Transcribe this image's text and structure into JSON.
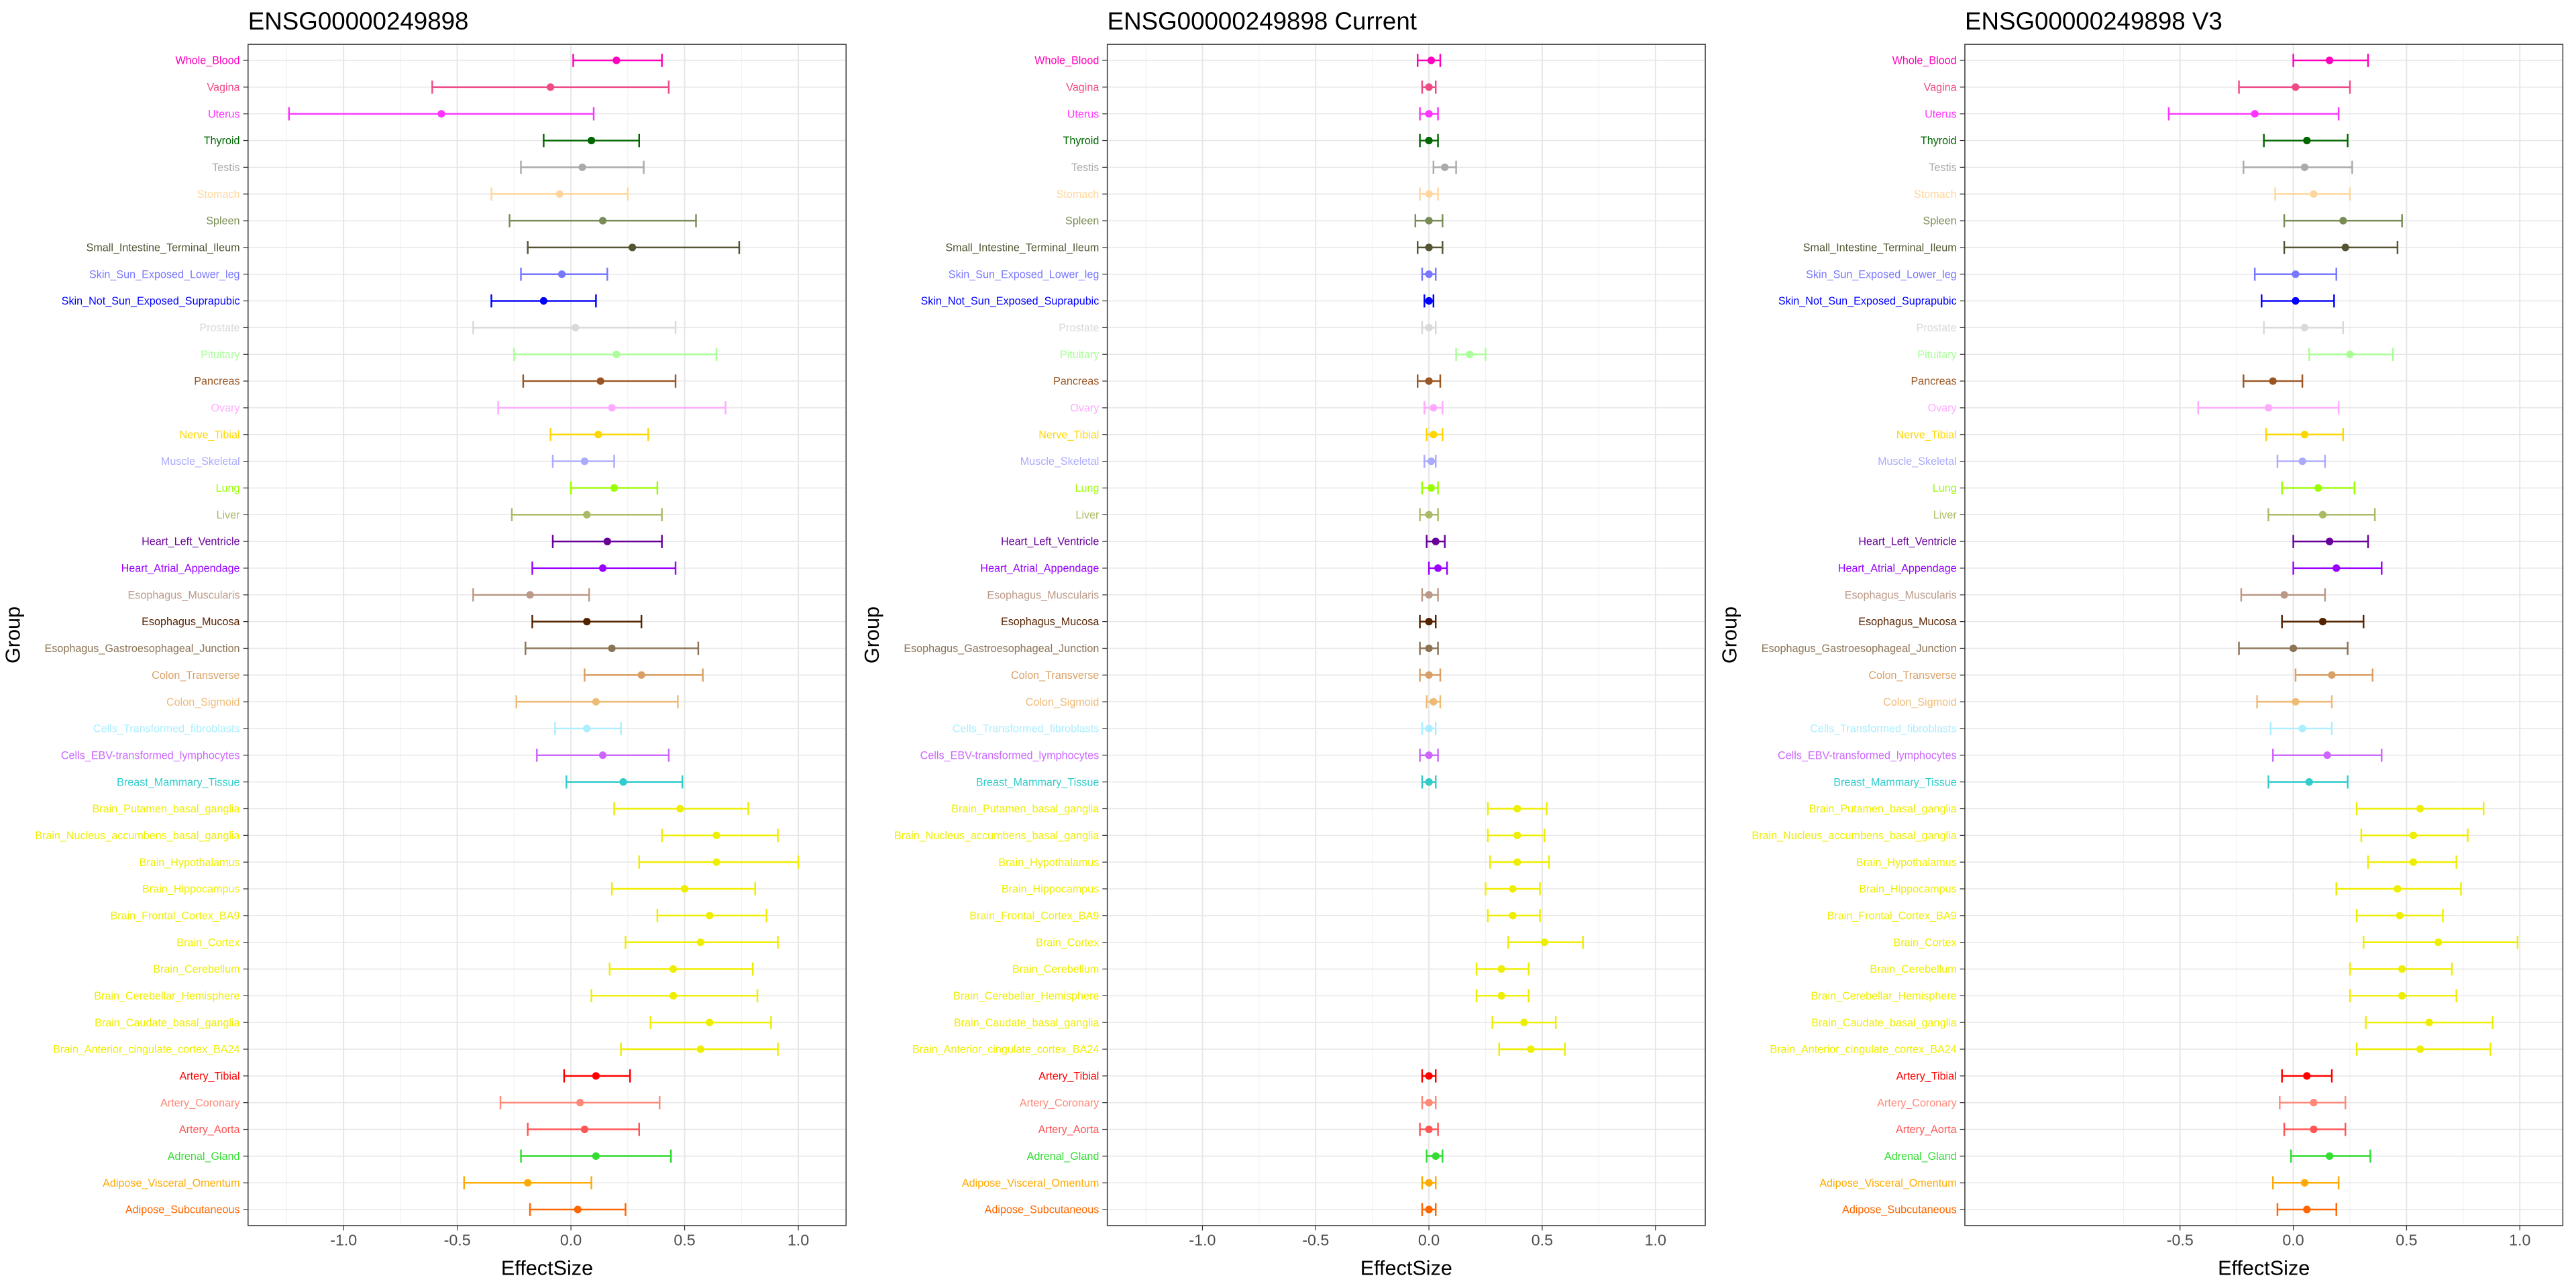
{
  "chart_data": [
    {
      "type": "forest",
      "title": "ENSG00000249898",
      "x_label": "EffectSize",
      "y_label": "Group",
      "categories": [
        "Whole_Blood",
        "Vagina",
        "Uterus",
        "Thyroid",
        "Testis",
        "Stomach",
        "Spleen",
        "Small_Intestine_Terminal_Ileum",
        "Skin_Sun_Exposed_Lower_leg",
        "Skin_Not_Sun_Exposed_Suprapubic",
        "Prostate",
        "Pituitary",
        "Pancreas",
        "Ovary",
        "Nerve_Tibial",
        "Muscle_Skeletal",
        "Lung",
        "Liver",
        "Heart_Left_Ventricle",
        "Heart_Atrial_Appendage",
        "Esophagus_Muscularis",
        "Esophagus_Mucosa",
        "Esophagus_Gastroesophageal_Junction",
        "Colon_Transverse",
        "Colon_Sigmoid",
        "Cells_Transformed_fibroblasts",
        "Cells_EBV-transformed_lymphocytes",
        "Breast_Mammary_Tissue",
        "Brain_Putamen_basal_ganglia",
        "Brain_Nucleus_accumbens_basal_ganglia",
        "Brain_Hypothalamus",
        "Brain_Hippocampus",
        "Brain_Frontal_Cortex_BA9",
        "Brain_Cortex",
        "Brain_Cerebellum",
        "Brain_Cerebellar_Hemisphere",
        "Brain_Caudate_basal_ganglia",
        "Brain_Anterior_cingulate_cortex_BA24",
        "Artery_Tibial",
        "Artery_Coronary",
        "Artery_Aorta",
        "Adrenal_Gland",
        "Adipose_Visceral_Omentum",
        "Adipose_Subcutaneous"
      ],
      "colors": [
        "#FF00BB",
        "#EE4C88",
        "#FF33FF",
        "#006600",
        "#AAAAAA",
        "#FFD79E",
        "#7A8B55",
        "#555533",
        "#7777FF",
        "#0000FF",
        "#D9D9D9",
        "#AAFF99",
        "#995522",
        "#FFAAFF",
        "#FFD700",
        "#AAAAFF",
        "#99FF00",
        "#AABB66",
        "#660099",
        "#9900FF",
        "#BB9988",
        "#552200",
        "#8B7355",
        "#D9A066",
        "#EEBB77",
        "#AAEEFF",
        "#CC66FF",
        "#33CCCC",
        "#EEEE00",
        "#EEEE00",
        "#EEEE00",
        "#EEEE00",
        "#EEEE00",
        "#EEEE00",
        "#EEEE00",
        "#EEEE00",
        "#EEEE00",
        "#EEEE00",
        "#FF0000",
        "#FF8877",
        "#FF5555",
        "#33DD33",
        "#FFAA00",
        "#FF6600"
      ],
      "values": [
        0.2,
        -0.09,
        -0.57,
        0.09,
        0.05,
        -0.05,
        0.14,
        0.27,
        -0.04,
        -0.12,
        0.02,
        0.2,
        0.13,
        0.18,
        0.12,
        0.06,
        0.19,
        0.07,
        0.16,
        0.14,
        -0.18,
        0.07,
        0.18,
        0.31,
        0.11,
        0.07,
        0.14,
        0.23,
        0.48,
        0.64,
        0.64,
        0.5,
        0.61,
        0.57,
        0.45,
        0.45,
        0.61,
        0.57,
        0.11,
        0.04,
        0.06,
        0.11,
        -0.19,
        0.03
      ],
      "lower": [
        0.01,
        -0.61,
        -1.24,
        -0.12,
        -0.22,
        -0.35,
        -0.27,
        -0.19,
        -0.22,
        -0.35,
        -0.43,
        -0.25,
        -0.21,
        -0.32,
        -0.09,
        -0.08,
        0.0,
        -0.26,
        -0.08,
        -0.17,
        -0.43,
        -0.17,
        -0.2,
        0.06,
        -0.24,
        -0.07,
        -0.15,
        -0.02,
        0.19,
        0.4,
        0.3,
        0.18,
        0.38,
        0.24,
        0.17,
        0.09,
        0.35,
        0.22,
        -0.03,
        -0.31,
        -0.19,
        -0.22,
        -0.47,
        -0.18
      ],
      "upper": [
        0.4,
        0.43,
        0.1,
        0.3,
        0.32,
        0.25,
        0.55,
        0.74,
        0.16,
        0.11,
        0.46,
        0.64,
        0.46,
        0.68,
        0.34,
        0.19,
        0.38,
        0.4,
        0.4,
        0.46,
        0.08,
        0.31,
        0.56,
        0.58,
        0.47,
        0.22,
        0.43,
        0.49,
        0.78,
        0.91,
        1.0,
        0.81,
        0.86,
        0.91,
        0.8,
        0.82,
        0.88,
        0.91,
        0.26,
        0.39,
        0.3,
        0.44,
        0.09,
        0.24
      ],
      "xlim": [
        -1.42,
        1.21
      ],
      "xticks": [
        {
          "value": -1,
          "label": "-1.0"
        },
        -0.5,
        {
          "value": 0,
          "label": "0.0"
        },
        0.5,
        {
          "value": 1,
          "label": "1.0"
        }
      ],
      "grid": true
    },
    {
      "type": "forest",
      "title": "ENSG00000249898 Current",
      "x_label": "EffectSize",
      "y_label": "Group",
      "categories": [
        "Whole_Blood",
        "Vagina",
        "Uterus",
        "Thyroid",
        "Testis",
        "Stomach",
        "Spleen",
        "Small_Intestine_Terminal_Ileum",
        "Skin_Sun_Exposed_Lower_leg",
        "Skin_Not_Sun_Exposed_Suprapubic",
        "Prostate",
        "Pituitary",
        "Pancreas",
        "Ovary",
        "Nerve_Tibial",
        "Muscle_Skeletal",
        "Lung",
        "Liver",
        "Heart_Left_Ventricle",
        "Heart_Atrial_Appendage",
        "Esophagus_Muscularis",
        "Esophagus_Mucosa",
        "Esophagus_Gastroesophageal_Junction",
        "Colon_Transverse",
        "Colon_Sigmoid",
        "Cells_Transformed_fibroblasts",
        "Cells_EBV-transformed_lymphocytes",
        "Breast_Mammary_Tissue",
        "Brain_Putamen_basal_ganglia",
        "Brain_Nucleus_accumbens_basal_ganglia",
        "Brain_Hypothalamus",
        "Brain_Hippocampus",
        "Brain_Frontal_Cortex_BA9",
        "Brain_Cortex",
        "Brain_Cerebellum",
        "Brain_Cerebellar_Hemisphere",
        "Brain_Caudate_basal_ganglia",
        "Brain_Anterior_cingulate_cortex_BA24",
        "Artery_Tibial",
        "Artery_Coronary",
        "Artery_Aorta",
        "Adrenal_Gland",
        "Adipose_Visceral_Omentum",
        "Adipose_Subcutaneous"
      ],
      "colors": [
        "#FF00BB",
        "#EE4C88",
        "#FF33FF",
        "#006600",
        "#AAAAAA",
        "#FFD79E",
        "#7A8B55",
        "#555533",
        "#7777FF",
        "#0000FF",
        "#D9D9D9",
        "#AAFF99",
        "#995522",
        "#FFAAFF",
        "#FFD700",
        "#AAAAFF",
        "#99FF00",
        "#AABB66",
        "#660099",
        "#9900FF",
        "#BB9988",
        "#552200",
        "#8B7355",
        "#D9A066",
        "#EEBB77",
        "#AAEEFF",
        "#CC66FF",
        "#33CCCC",
        "#EEEE00",
        "#EEEE00",
        "#EEEE00",
        "#EEEE00",
        "#EEEE00",
        "#EEEE00",
        "#EEEE00",
        "#EEEE00",
        "#EEEE00",
        "#EEEE00",
        "#FF0000",
        "#FF8877",
        "#FF5555",
        "#33DD33",
        "#FFAA00",
        "#FF6600"
      ],
      "values": [
        0.01,
        0.0,
        0.0,
        0.0,
        0.07,
        0.0,
        0.0,
        0.0,
        0.0,
        0.0,
        0.0,
        0.18,
        0.0,
        0.02,
        0.02,
        0.01,
        0.01,
        0.0,
        0.03,
        0.04,
        0.0,
        0.0,
        0.0,
        0.0,
        0.02,
        0.0,
        0.0,
        0.0,
        0.39,
        0.39,
        0.39,
        0.37,
        0.37,
        0.51,
        0.32,
        0.32,
        0.42,
        0.45,
        0.0,
        0.0,
        0.0,
        0.03,
        0.0,
        0.0
      ],
      "lower": [
        -0.05,
        -0.03,
        -0.04,
        -0.04,
        0.02,
        -0.04,
        -0.06,
        -0.05,
        -0.03,
        -0.02,
        -0.03,
        0.12,
        -0.05,
        -0.02,
        -0.01,
        -0.02,
        -0.03,
        -0.04,
        -0.01,
        0.0,
        -0.03,
        -0.04,
        -0.04,
        -0.04,
        -0.01,
        -0.03,
        -0.04,
        -0.03,
        0.26,
        0.26,
        0.27,
        0.25,
        0.26,
        0.35,
        0.21,
        0.21,
        0.28,
        0.31,
        -0.03,
        -0.03,
        -0.04,
        -0.01,
        -0.03,
        -0.03
      ],
      "upper": [
        0.05,
        0.03,
        0.04,
        0.04,
        0.12,
        0.04,
        0.06,
        0.06,
        0.03,
        0.02,
        0.03,
        0.25,
        0.05,
        0.06,
        0.06,
        0.03,
        0.04,
        0.04,
        0.07,
        0.08,
        0.04,
        0.03,
        0.04,
        0.05,
        0.05,
        0.03,
        0.04,
        0.03,
        0.52,
        0.51,
        0.53,
        0.49,
        0.49,
        0.68,
        0.44,
        0.44,
        0.56,
        0.6,
        0.03,
        0.03,
        0.04,
        0.06,
        0.03,
        0.03
      ],
      "xlim": [
        -1.42,
        1.22
      ],
      "xticks": [
        {
          "value": -1,
          "label": "-1.0"
        },
        -0.5,
        {
          "value": 0,
          "label": "0.0"
        },
        0.5,
        {
          "value": 1,
          "label": "1.0"
        }
      ],
      "grid": true
    },
    {
      "type": "forest",
      "title": "ENSG00000249898 V3",
      "x_label": "EffectSize",
      "y_label": "Group",
      "categories": [
        "Whole_Blood",
        "Vagina",
        "Uterus",
        "Thyroid",
        "Testis",
        "Stomach",
        "Spleen",
        "Small_Intestine_Terminal_Ileum",
        "Skin_Sun_Exposed_Lower_leg",
        "Skin_Not_Sun_Exposed_Suprapubic",
        "Prostate",
        "Pituitary",
        "Pancreas",
        "Ovary",
        "Nerve_Tibial",
        "Muscle_Skeletal",
        "Lung",
        "Liver",
        "Heart_Left_Ventricle",
        "Heart_Atrial_Appendage",
        "Esophagus_Muscularis",
        "Esophagus_Mucosa",
        "Esophagus_Gastroesophageal_Junction",
        "Colon_Transverse",
        "Colon_Sigmoid",
        "Cells_Transformed_fibroblasts",
        "Cells_EBV-transformed_lymphocytes",
        "Breast_Mammary_Tissue",
        "Brain_Putamen_basal_ganglia",
        "Brain_Nucleus_accumbens_basal_ganglia",
        "Brain_Hypothalamus",
        "Brain_Hippocampus",
        "Brain_Frontal_Cortex_BA9",
        "Brain_Cortex",
        "Brain_Cerebellum",
        "Brain_Cerebellar_Hemisphere",
        "Brain_Caudate_basal_ganglia",
        "Brain_Anterior_cingulate_cortex_BA24",
        "Artery_Tibial",
        "Artery_Coronary",
        "Artery_Aorta",
        "Adrenal_Gland",
        "Adipose_Visceral_Omentum",
        "Adipose_Subcutaneous"
      ],
      "colors": [
        "#FF00BB",
        "#EE4C88",
        "#FF33FF",
        "#006600",
        "#AAAAAA",
        "#FFD79E",
        "#7A8B55",
        "#555533",
        "#7777FF",
        "#0000FF",
        "#D9D9D9",
        "#AAFF99",
        "#995522",
        "#FFAAFF",
        "#FFD700",
        "#AAAAFF",
        "#99FF00",
        "#AABB66",
        "#660099",
        "#9900FF",
        "#BB9988",
        "#552200",
        "#8B7355",
        "#D9A066",
        "#EEBB77",
        "#AAEEFF",
        "#CC66FF",
        "#33CCCC",
        "#EEEE00",
        "#EEEE00",
        "#EEEE00",
        "#EEEE00",
        "#EEEE00",
        "#EEEE00",
        "#EEEE00",
        "#EEEE00",
        "#EEEE00",
        "#EEEE00",
        "#FF0000",
        "#FF8877",
        "#FF5555",
        "#33DD33",
        "#FFAA00",
        "#FF6600"
      ],
      "values": [
        0.16,
        0.01,
        -0.17,
        0.06,
        0.05,
        0.09,
        0.22,
        0.23,
        0.01,
        0.01,
        0.05,
        0.25,
        -0.09,
        -0.11,
        0.05,
        0.04,
        0.11,
        0.13,
        0.16,
        0.19,
        -0.04,
        0.13,
        0.0,
        0.17,
        0.01,
        0.04,
        0.15,
        0.07,
        0.56,
        0.53,
        0.53,
        0.46,
        0.47,
        0.64,
        0.48,
        0.48,
        0.6,
        0.56,
        0.06,
        0.09,
        0.09,
        0.16,
        0.05,
        0.06
      ],
      "lower": [
        0.0,
        -0.24,
        -0.55,
        -0.13,
        -0.22,
        -0.08,
        -0.04,
        -0.04,
        -0.17,
        -0.14,
        -0.13,
        0.07,
        -0.22,
        -0.42,
        -0.12,
        -0.07,
        -0.05,
        -0.11,
        0.0,
        0.0,
        -0.23,
        -0.05,
        -0.24,
        0.01,
        -0.16,
        -0.1,
        -0.09,
        -0.11,
        0.28,
        0.3,
        0.33,
        0.19,
        0.28,
        0.31,
        0.25,
        0.25,
        0.32,
        0.28,
        -0.05,
        -0.06,
        -0.04,
        -0.01,
        -0.09,
        -0.07
      ],
      "upper": [
        0.33,
        0.25,
        0.2,
        0.24,
        0.26,
        0.25,
        0.48,
        0.46,
        0.19,
        0.18,
        0.22,
        0.44,
        0.04,
        0.2,
        0.22,
        0.14,
        0.27,
        0.36,
        0.33,
        0.39,
        0.14,
        0.31,
        0.24,
        0.35,
        0.17,
        0.17,
        0.39,
        0.24,
        0.84,
        0.77,
        0.72,
        0.74,
        0.66,
        0.99,
        0.7,
        0.72,
        0.88,
        0.87,
        0.17,
        0.23,
        0.23,
        0.34,
        0.2,
        0.19
      ],
      "xlim": [
        -1.45,
        1.19
      ],
      "xticks": [
        -0.5,
        {
          "value": 0,
          "label": "0.0"
        },
        0.5,
        {
          "value": 1,
          "label": "1.0"
        }
      ],
      "grid": true
    }
  ]
}
